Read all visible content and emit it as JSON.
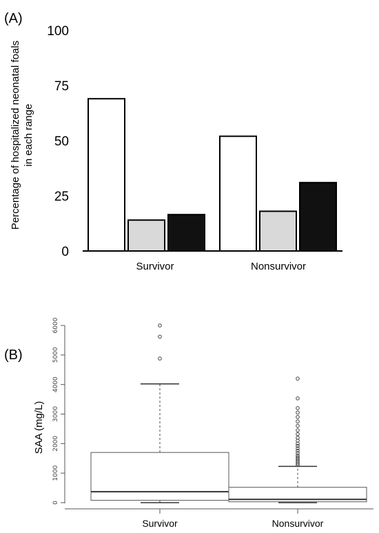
{
  "chart_data": [
    {
      "panel": "(A)",
      "type": "bar",
      "title": "",
      "xlabel": "",
      "ylabel_lines": [
        "Percentage of hospitalized neonatal foals",
        "in each range"
      ],
      "ylim": [
        0,
        100
      ],
      "yticks": [
        "100",
        "75",
        "50",
        "25",
        "0"
      ],
      "categories": [
        "Survivor",
        "Nonsurvivor"
      ],
      "series_colors": [
        "#ffffff",
        "#d9d9d9",
        "#111111"
      ],
      "values": [
        [
          69,
          14,
          16.5
        ],
        [
          52,
          18,
          31
        ]
      ],
      "grid": false,
      "legend": "none"
    },
    {
      "panel": "(B)",
      "type": "box",
      "title": "",
      "xlabel": "",
      "ylabel": "SAA (mg/L)",
      "ylim": [
        0,
        6000
      ],
      "yticks": [
        "0",
        "1000",
        "2000",
        "3000",
        "4000",
        "5000",
        "6000"
      ],
      "categories": [
        "Survivor",
        "Nonsurvivor"
      ],
      "boxes": [
        {
          "whisker_low": 0,
          "q1": 80,
          "median": 370,
          "q3": 1700,
          "whisker_high": 4020,
          "outliers": [
            4880,
            5620,
            6000
          ]
        },
        {
          "whisker_low": 0,
          "q1": 30,
          "median": 110,
          "q3": 520,
          "whisker_high": 1230,
          "outliers": [
            1270,
            1320,
            1370,
            1420,
            1480,
            1540,
            1600,
            1680,
            1760,
            1840,
            1920,
            2000,
            2100,
            2200,
            2320,
            2450,
            2600,
            2750,
            2900,
            3050,
            3200,
            3530,
            4200
          ]
        }
      ],
      "grid": false,
      "legend": "none"
    }
  ]
}
